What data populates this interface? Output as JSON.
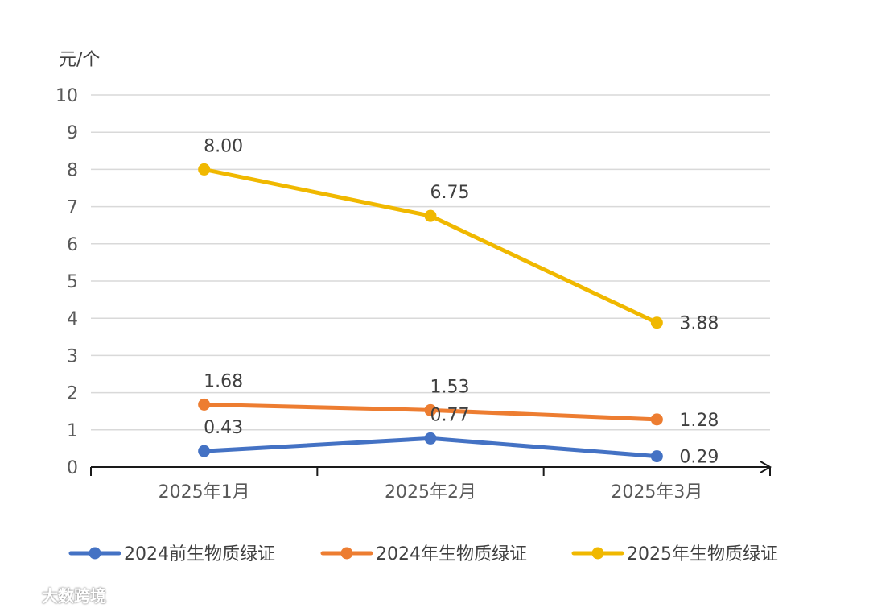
{
  "chart_data": {
    "type": "line",
    "ylabel": "元/个",
    "ylim": [
      0,
      10
    ],
    "yticks": [
      0,
      1,
      2,
      3,
      4,
      5,
      6,
      7,
      8,
      9,
      10
    ],
    "grid": true,
    "categories": [
      "2025年1月",
      "2025年2月",
      "2025年3月"
    ],
    "legend_position": "bottom",
    "series": [
      {
        "name": "2024前生物质绿证",
        "color": "#4472C4",
        "values": [
          0.43,
          0.77,
          0.29
        ],
        "labels": [
          "0.43",
          "0.77",
          "0.29"
        ]
      },
      {
        "name": "2024年生物质绿证",
        "color": "#ED7D31",
        "values": [
          1.68,
          1.53,
          1.28
        ],
        "labels": [
          "1.68",
          "1.53",
          "1.28"
        ]
      },
      {
        "name": "2025年生物质绿证",
        "color": "#F0B800",
        "values": [
          8.0,
          6.75,
          3.88
        ],
        "labels": [
          "8.00",
          "6.75",
          "3.88"
        ]
      }
    ]
  },
  "watermark": {
    "text": "大数跨境"
  }
}
